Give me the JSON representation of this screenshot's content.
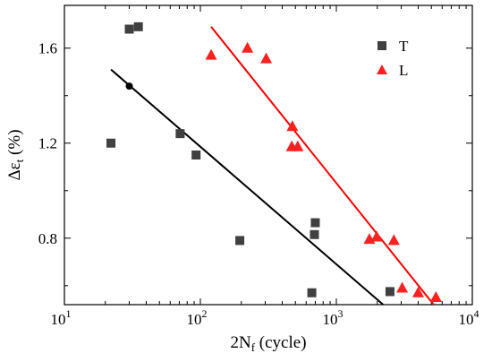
{
  "chart_data": {
    "type": "scatter",
    "xscale": "log",
    "xlim": [
      10,
      10000
    ],
    "ylim": [
      0.52,
      1.78
    ],
    "xticks": [
      10,
      100,
      1000,
      10000
    ],
    "xtick_labels": [
      {
        "base": "10",
        "exp": "1"
      },
      {
        "base": "10",
        "exp": "2"
      },
      {
        "base": "10",
        "exp": "3"
      },
      {
        "base": "10",
        "exp": "4"
      }
    ],
    "yticks": [
      0.8,
      1.2,
      1.6
    ],
    "ytick_labels": [
      "0.8",
      "1.2",
      "1.6"
    ],
    "xlabel": {
      "main": "2N",
      "sub": "f",
      "rest": " (cycle)"
    },
    "ylabel": {
      "main": "Δε",
      "sub": "t",
      "rest": " (%)"
    },
    "grid": false,
    "legend_position": "top-right",
    "series": [
      {
        "name": "T",
        "marker": "square",
        "color": "#404040",
        "points": [
          [
            22,
            1.2
          ],
          [
            30,
            1.68
          ],
          [
            35,
            1.69
          ],
          [
            71,
            1.24
          ],
          [
            93,
            1.15
          ],
          [
            195,
            0.79
          ],
          [
            660,
            0.57
          ],
          [
            690,
            0.815
          ],
          [
            700,
            0.865
          ],
          [
            2480,
            0.575
          ]
        ],
        "fit": {
          "color": "#000000",
          "x": [
            22,
            2210
          ],
          "y": [
            1.51,
            0.52
          ]
        },
        "highlight": {
          "x": 30,
          "y": 1.44,
          "color": "#000000"
        }
      },
      {
        "name": "L",
        "marker": "triangle",
        "color": "#ff2020",
        "points": [
          [
            120,
            1.57
          ],
          [
            222,
            1.6
          ],
          [
            305,
            1.555
          ],
          [
            475,
            1.27
          ],
          [
            470,
            1.185
          ],
          [
            520,
            1.185
          ],
          [
            1750,
            0.795
          ],
          [
            1980,
            0.805
          ],
          [
            2650,
            0.79
          ],
          [
            3050,
            0.59
          ],
          [
            4000,
            0.57
          ],
          [
            5400,
            0.55
          ]
        ],
        "fit": {
          "color": "#ff0000",
          "x": [
            120,
            5200
          ],
          "y": [
            1.69,
            0.52
          ]
        }
      }
    ]
  }
}
